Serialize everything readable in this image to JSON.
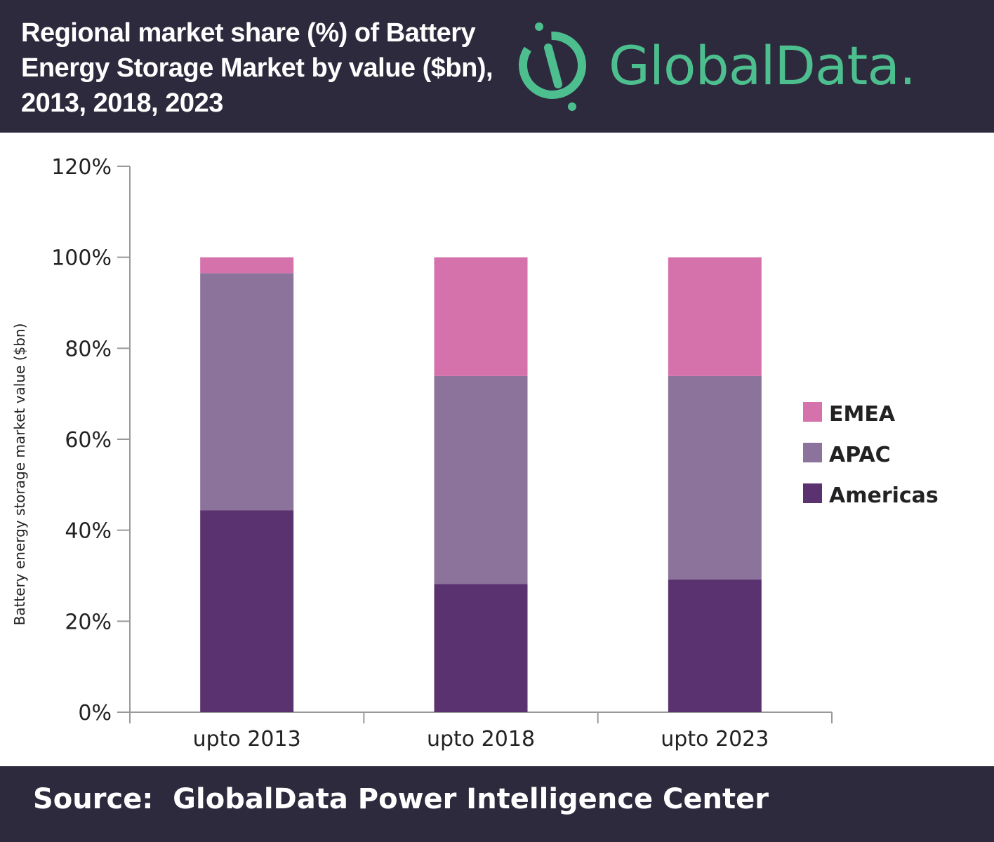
{
  "header": {
    "title": "Regional market share (%) of Battery Energy Storage Market by value ($bn), 2013, 2018, 2023",
    "logo_text": "GlobalData."
  },
  "footer": {
    "source": "Source:  GlobalData Power Intelligence Center"
  },
  "chart_data": {
    "type": "bar",
    "stacked": true,
    "title": "Regional market share (%) of Battery Energy Storage Market by value ($bn), 2013, 2018, 2023",
    "xlabel": "",
    "ylabel": "Battery energy storage market value ($bn)",
    "ylim": [
      0,
      120
    ],
    "yticks": [
      "0%",
      "20%",
      "40%",
      "60%",
      "80%",
      "100%",
      "120%"
    ],
    "grid": false,
    "legend_position": "right",
    "categories": [
      "upto 2013",
      "upto 2018",
      "upto 2023"
    ],
    "series": [
      {
        "name": "Americas",
        "color": "#5b3270",
        "values": [
          44.4,
          28.2,
          29.2
        ]
      },
      {
        "name": "APAC",
        "color": "#8c739b",
        "values": [
          52.1,
          45.7,
          44.7
        ]
      },
      {
        "name": "EMEA",
        "color": "#d572ab",
        "values": [
          3.5,
          26.1,
          26.1
        ]
      }
    ]
  }
}
